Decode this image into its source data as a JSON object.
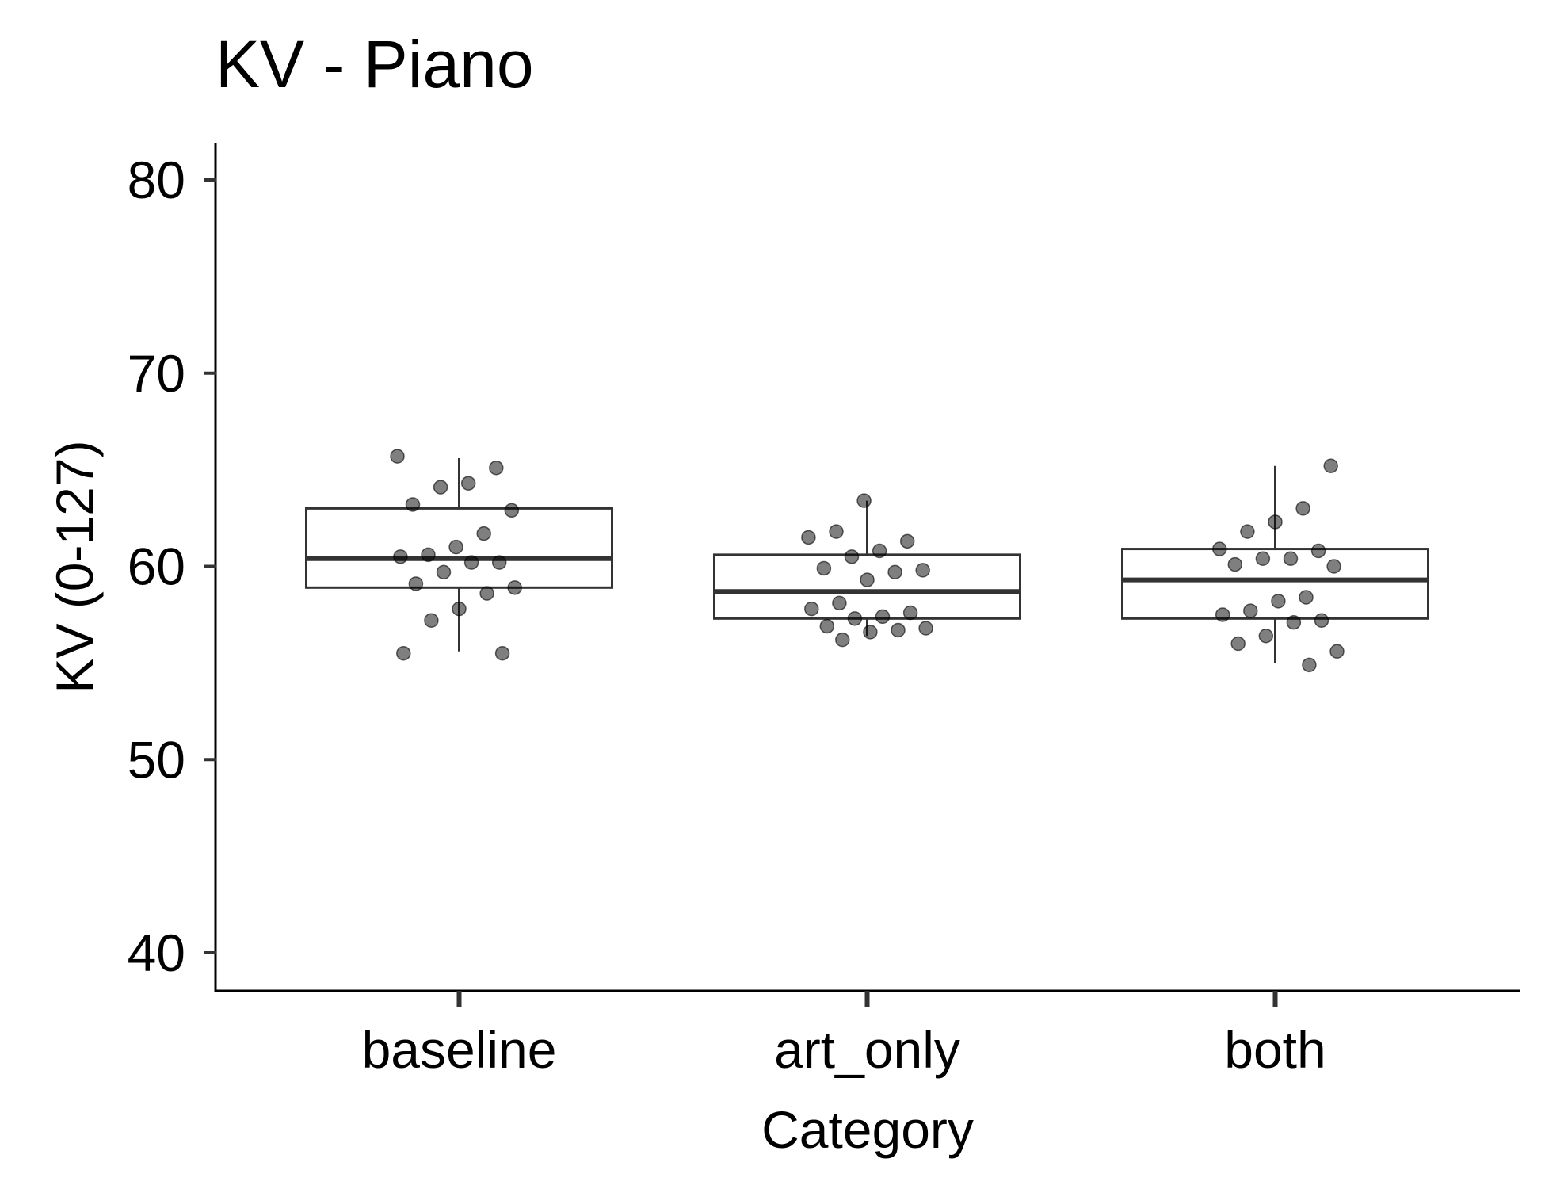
{
  "chart_data": {
    "type": "box",
    "title": "KV - Piano",
    "xlabel": "Category",
    "ylabel": "KV (0-127)",
    "ylim": [
      38,
      82
    ],
    "yticks": [
      40,
      50,
      60,
      70,
      80
    ],
    "categories": [
      "baseline",
      "art_only",
      "both"
    ],
    "grid": false,
    "legend": "none",
    "boxes": [
      {
        "category": "baseline",
        "whisker_low": 55.6,
        "q1": 58.9,
        "median": 60.4,
        "q3": 63.0,
        "whisker_high": 65.6
      },
      {
        "category": "art_only",
        "whisker_low": 56.4,
        "q1": 57.3,
        "median": 58.7,
        "q3": 60.6,
        "whisker_high": 63.4
      },
      {
        "category": "both",
        "whisker_low": 55.0,
        "q1": 57.3,
        "median": 59.3,
        "q3": 60.9,
        "whisker_high": 65.2
      }
    ],
    "points": [
      {
        "category": "baseline",
        "values": [
          65.7,
          65.1,
          64.3,
          64.1,
          63.2,
          62.9,
          61.7,
          61.0,
          60.6,
          60.5,
          60.2,
          60.2,
          59.7,
          59.1,
          58.9,
          58.6,
          57.8,
          57.2,
          55.5,
          55.5
        ]
      },
      {
        "category": "art_only",
        "values": [
          63.4,
          61.8,
          61.5,
          61.3,
          60.8,
          60.5,
          59.9,
          59.8,
          59.7,
          59.3,
          58.1,
          57.8,
          57.6,
          57.4,
          57.3,
          56.9,
          56.8,
          56.7,
          56.6,
          56.2
        ]
      },
      {
        "category": "both",
        "values": [
          65.2,
          63.0,
          62.3,
          61.8,
          60.9,
          60.8,
          60.4,
          60.4,
          60.1,
          60.0,
          58.4,
          58.2,
          57.7,
          57.5,
          57.2,
          57.1,
          56.4,
          56.0,
          55.6,
          54.9
        ]
      }
    ],
    "colors": {
      "box": "#333333",
      "point": "#000000",
      "point_opacity": 0.5
    }
  }
}
